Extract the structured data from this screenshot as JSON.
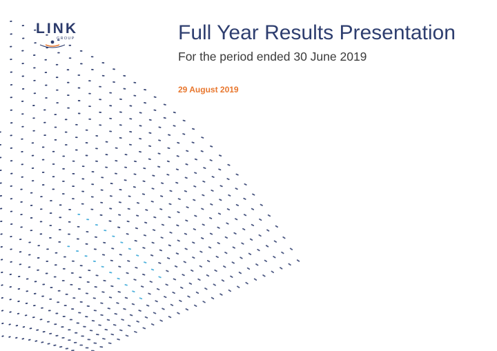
{
  "brand": {
    "wordmark": "LINK",
    "sub": "GROUP",
    "color": "#2b3a6b",
    "accent": "#e8772e"
  },
  "slide": {
    "title": "Full Year Results Presentation",
    "subtitle": "For the period ended 30 June 2019",
    "date": "29 August 2019"
  },
  "graphic": {
    "name": "dotted-wave-graphic",
    "colors": {
      "primary": "#2b3a6b",
      "highlight": "#3aa8d8"
    }
  }
}
